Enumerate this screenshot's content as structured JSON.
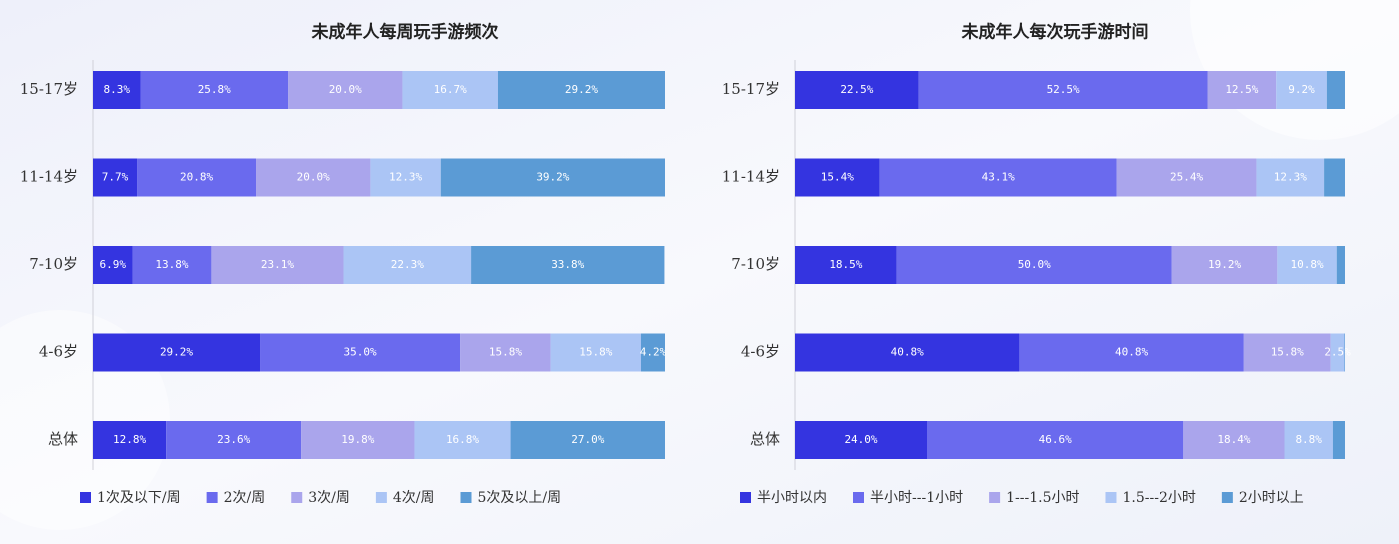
{
  "chart_data": [
    {
      "type": "stacked-bar",
      "title": "未成年人每周玩手游频次",
      "categories": [
        "15-17岁",
        "11-14岁",
        "7-10岁",
        "4-6岁",
        "总体"
      ],
      "xlim": [
        0,
        100
      ],
      "series": [
        {
          "name": "1次及以下/周",
          "color": "#3434e0",
          "values": [
            8.3,
            7.7,
            6.9,
            29.2,
            12.8
          ],
          "value_labels": [
            "8.3%",
            "7.7%",
            "6.9%",
            "29.2%",
            "12.8%"
          ]
        },
        {
          "name": "2次/周",
          "color": "#6a6aee",
          "values": [
            25.8,
            20.8,
            13.8,
            35.0,
            23.6
          ],
          "value_labels": [
            "25.8%",
            "20.8%",
            "13.8%",
            "35.0%",
            "23.6%"
          ]
        },
        {
          "name": "3次/周",
          "color": "#aaa5ec",
          "values": [
            20.0,
            20.0,
            23.1,
            15.8,
            19.8
          ],
          "value_labels": [
            "20.0%",
            "20.0%",
            "23.1%",
            "15.8%",
            "19.8%"
          ]
        },
        {
          "name": "4次/周",
          "color": "#abc5f5",
          "values": [
            16.7,
            12.3,
            22.3,
            15.8,
            16.8
          ],
          "value_labels": [
            "16.7%",
            "12.3%",
            "22.3%",
            "15.8%",
            "16.8%"
          ]
        },
        {
          "name": "5次及以上/周",
          "color": "#5b9bd5",
          "values": [
            29.2,
            39.2,
            33.8,
            4.2,
            27.0
          ],
          "value_labels": [
            "29.2%",
            "39.2%",
            "33.8%",
            "4.2%",
            "27.0%"
          ]
        }
      ]
    },
    {
      "type": "stacked-bar",
      "title": "未成年人每次玩手游时间",
      "categories": [
        "15-17岁",
        "11-14岁",
        "7-10岁",
        "4-6岁",
        "总体"
      ],
      "xlim": [
        0,
        100
      ],
      "series": [
        {
          "name": "半小时以内",
          "color": "#3434e0",
          "values": [
            22.5,
            15.4,
            18.5,
            40.8,
            24.0
          ],
          "value_labels": [
            "22.5%",
            "15.4%",
            "18.5%",
            "40.8%",
            "24.0%"
          ]
        },
        {
          "name": "半小时---1小时",
          "color": "#6a6aee",
          "values": [
            52.5,
            43.1,
            50.0,
            40.8,
            46.6
          ],
          "value_labels": [
            "52.5%",
            "43.1%",
            "50.0%",
            "40.8%",
            "46.6%"
          ]
        },
        {
          "name": "1---1.5小时",
          "color": "#aaa5ec",
          "values": [
            12.5,
            25.4,
            19.2,
            15.8,
            18.4
          ],
          "value_labels": [
            "12.5%",
            "25.4%",
            "19.2%",
            "15.8%",
            "18.4%"
          ]
        },
        {
          "name": "1.5---2小时",
          "color": "#abc5f5",
          "values": [
            9.2,
            12.3,
            10.8,
            2.5,
            8.8
          ],
          "value_labels": [
            "9.2%",
            "12.3%",
            "10.8%",
            "2.5%",
            "8.8%"
          ]
        },
        {
          "name": "2小时以上",
          "color": "#5b9bd5",
          "values": [
            3.3,
            3.8,
            1.5,
            0.1,
            2.2
          ],
          "value_labels": [
            null,
            null,
            null,
            null,
            null
          ]
        }
      ]
    }
  ]
}
